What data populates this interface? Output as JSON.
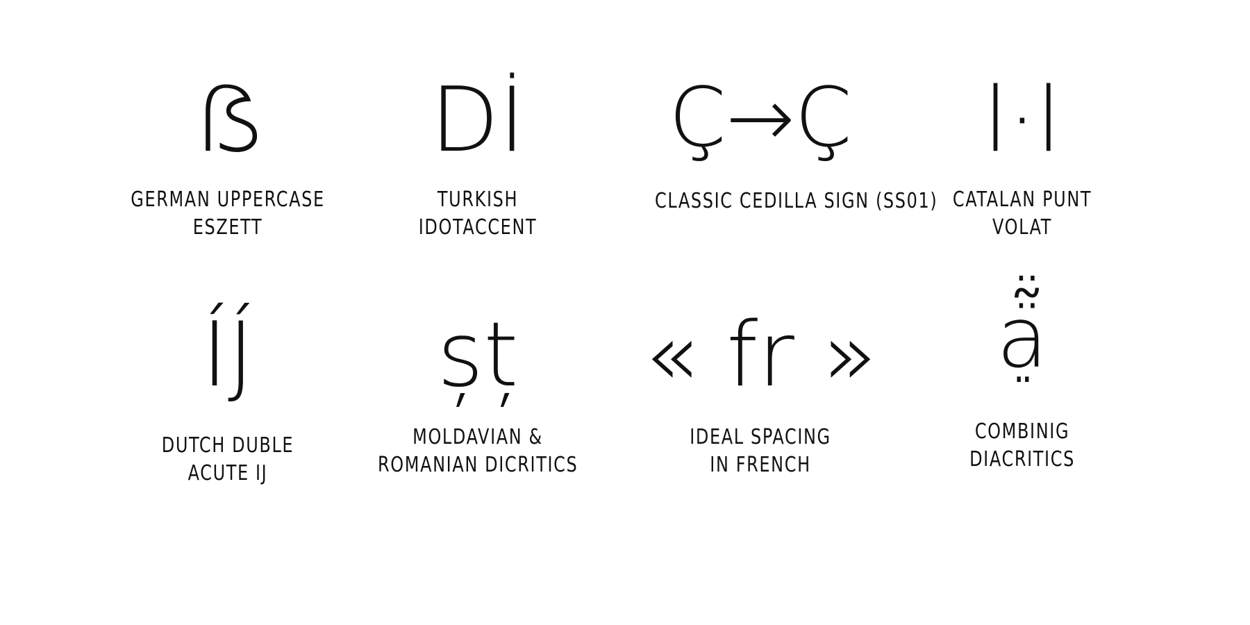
{
  "features": [
    {
      "glyph": "ẞ",
      "label": [
        "GERMAN UPPERCASE",
        "ESZETT"
      ]
    },
    {
      "glyph": "Dİ",
      "label": [
        "TURKISH",
        "IDOTACCENT"
      ]
    },
    {
      "glyph": "Ç→Ç",
      "label": [
        "CLASSIC CEDILLA SIGN (SS01)"
      ]
    },
    {
      "glyph": "l·l",
      "label": [
        "CATALAN PUNT",
        "VOLAT"
      ]
    },
    {
      "glyph": "ÍJ́",
      "label": [
        "DUTCH DUBLE",
        "ACUTE IJ"
      ]
    },
    {
      "glyph": "șț",
      "label": [
        "MOLDAVIAN &",
        "ROMANIAN DICRITICS"
      ]
    },
    {
      "glyph": "« fr »",
      "label": [
        "IDEAL SPACING",
        "IN FRENCH"
      ]
    },
    {
      "glyph": "ạ̣̈̃̈",
      "label": [
        "COMBINIG",
        "DIACRITICS"
      ]
    }
  ]
}
